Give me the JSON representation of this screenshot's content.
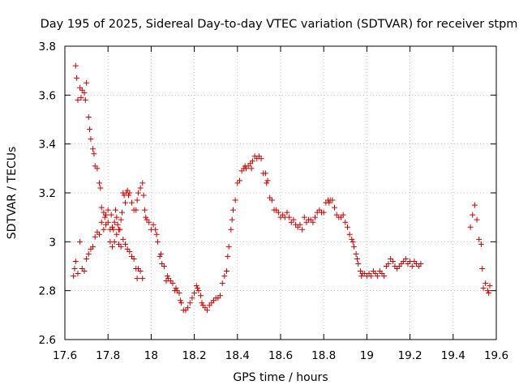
{
  "chart_data": {
    "type": "scatter",
    "title": "Day 195 of 2025, Sidereal Day-to-day VTEC variation (SDTVAR) for receiver stpm",
    "xlabel": "GPS time / hours",
    "ylabel": "SDTVAR / TECUs",
    "xlim": [
      17.6,
      19.6
    ],
    "ylim": [
      2.6,
      3.8
    ],
    "x_ticks": [
      17.6,
      17.8,
      18.0,
      18.2,
      18.4,
      18.6,
      18.8,
      19.0,
      19.2,
      19.4,
      19.6
    ],
    "x_tick_labels": [
      "17.6",
      "17.8",
      "18",
      "18.2",
      "18.4",
      "18.6",
      "18.8",
      "19",
      "19.2",
      "19.4",
      "19.6"
    ],
    "y_ticks": [
      2.6,
      2.8,
      3.0,
      3.2,
      3.4,
      3.6,
      3.8
    ],
    "y_tick_labels": [
      "2.6",
      "2.8",
      "3",
      "3.2",
      "3.4",
      "3.6",
      "3.8"
    ],
    "grid": true,
    "marker": "plus",
    "marker_color": "#cc0000",
    "series": [
      {
        "name": "SDTVAR",
        "points": [
          [
            17.65,
            3.72
          ],
          [
            17.655,
            3.67
          ],
          [
            17.66,
            3.58
          ],
          [
            17.67,
            3.63
          ],
          [
            17.675,
            3.59
          ],
          [
            17.68,
            3.62
          ],
          [
            17.69,
            3.61
          ],
          [
            17.695,
            3.58
          ],
          [
            17.7,
            3.65
          ],
          [
            17.71,
            3.51
          ],
          [
            17.715,
            3.46
          ],
          [
            17.72,
            3.42
          ],
          [
            17.73,
            3.38
          ],
          [
            17.735,
            3.36
          ],
          [
            17.74,
            3.31
          ],
          [
            17.75,
            3.3
          ],
          [
            17.76,
            3.24
          ],
          [
            17.765,
            3.22
          ],
          [
            17.77,
            3.14
          ],
          [
            17.78,
            3.12
          ],
          [
            17.785,
            3.1
          ],
          [
            17.79,
            3.07
          ],
          [
            17.8,
            3.08
          ],
          [
            17.81,
            3.05
          ],
          [
            17.815,
            3.11
          ],
          [
            17.82,
            3.06
          ],
          [
            17.825,
            3.05
          ],
          [
            17.83,
            3.08
          ],
          [
            17.835,
            3.13
          ],
          [
            17.84,
            3.1
          ],
          [
            17.845,
            3.07
          ],
          [
            17.85,
            3.05
          ],
          [
            17.855,
            3.05
          ],
          [
            17.86,
            3.09
          ],
          [
            17.865,
            3.12
          ],
          [
            17.87,
            3.2
          ],
          [
            17.875,
            3.19
          ],
          [
            17.88,
            3.16
          ],
          [
            17.885,
            3.2
          ],
          [
            17.89,
            3.21
          ],
          [
            17.895,
            3.19
          ],
          [
            17.9,
            3.2
          ],
          [
            17.91,
            3.16
          ],
          [
            17.92,
            3.13
          ],
          [
            17.93,
            3.13
          ],
          [
            17.935,
            3.17
          ],
          [
            17.94,
            3.2
          ],
          [
            17.95,
            3.22
          ],
          [
            17.96,
            3.24
          ],
          [
            17.965,
            3.19
          ],
          [
            17.97,
            3.13
          ],
          [
            17.975,
            3.1
          ],
          [
            17.98,
            3.09
          ],
          [
            17.99,
            3.08
          ],
          [
            18.0,
            3.05
          ],
          [
            18.01,
            3.07
          ],
          [
            18.02,
            3.05
          ],
          [
            18.025,
            3.03
          ],
          [
            18.03,
            3.0
          ],
          [
            18.04,
            2.94
          ],
          [
            18.045,
            2.95
          ],
          [
            18.05,
            2.91
          ],
          [
            18.06,
            2.9
          ],
          [
            18.07,
            2.84
          ],
          [
            18.075,
            2.86
          ],
          [
            18.08,
            2.85
          ],
          [
            18.09,
            2.84
          ],
          [
            18.1,
            2.83
          ],
          [
            18.11,
            2.8
          ],
          [
            18.115,
            2.81
          ],
          [
            18.12,
            2.8
          ],
          [
            18.13,
            2.79
          ],
          [
            18.135,
            2.76
          ],
          [
            18.14,
            2.75
          ],
          [
            18.15,
            2.72
          ],
          [
            18.16,
            2.72
          ],
          [
            18.17,
            2.73
          ],
          [
            18.18,
            2.75
          ],
          [
            18.19,
            2.77
          ],
          [
            18.2,
            2.79
          ],
          [
            18.21,
            2.82
          ],
          [
            18.215,
            2.81
          ],
          [
            18.22,
            2.8
          ],
          [
            18.23,
            2.78
          ],
          [
            18.235,
            2.75
          ],
          [
            18.24,
            2.74
          ],
          [
            18.25,
            2.73
          ],
          [
            18.26,
            2.72
          ],
          [
            18.27,
            2.74
          ],
          [
            18.28,
            2.75
          ],
          [
            18.29,
            2.76
          ],
          [
            18.3,
            2.77
          ],
          [
            18.31,
            2.77
          ],
          [
            18.32,
            2.78
          ],
          [
            18.33,
            2.83
          ],
          [
            18.34,
            2.86
          ],
          [
            18.35,
            2.88
          ],
          [
            18.355,
            2.94
          ],
          [
            18.36,
            2.98
          ],
          [
            18.37,
            3.05
          ],
          [
            18.375,
            3.09
          ],
          [
            18.38,
            3.13
          ],
          [
            18.39,
            3.17
          ],
          [
            18.4,
            3.24
          ],
          [
            18.41,
            3.25
          ],
          [
            18.42,
            3.29
          ],
          [
            18.43,
            3.3
          ],
          [
            18.435,
            3.31
          ],
          [
            18.44,
            3.3
          ],
          [
            18.45,
            3.31
          ],
          [
            18.46,
            3.32
          ],
          [
            18.465,
            3.3
          ],
          [
            18.47,
            3.33
          ],
          [
            18.48,
            3.35
          ],
          [
            18.49,
            3.34
          ],
          [
            18.5,
            3.35
          ],
          [
            18.51,
            3.34
          ],
          [
            18.52,
            3.28
          ],
          [
            18.53,
            3.28
          ],
          [
            18.535,
            3.24
          ],
          [
            18.54,
            3.25
          ],
          [
            18.55,
            3.18
          ],
          [
            18.56,
            3.17
          ],
          [
            18.57,
            3.13
          ],
          [
            18.58,
            3.13
          ],
          [
            18.59,
            3.12
          ],
          [
            18.6,
            3.1
          ],
          [
            18.61,
            3.11
          ],
          [
            18.62,
            3.1
          ],
          [
            18.63,
            3.12
          ],
          [
            18.64,
            3.1
          ],
          [
            18.65,
            3.08
          ],
          [
            18.66,
            3.09
          ],
          [
            18.67,
            3.07
          ],
          [
            18.68,
            3.06
          ],
          [
            18.69,
            3.07
          ],
          [
            18.7,
            3.05
          ],
          [
            18.71,
            3.1
          ],
          [
            18.72,
            3.08
          ],
          [
            18.73,
            3.09
          ],
          [
            18.74,
            3.09
          ],
          [
            18.75,
            3.08
          ],
          [
            18.76,
            3.1
          ],
          [
            18.77,
            3.12
          ],
          [
            18.78,
            3.13
          ],
          [
            18.79,
            3.12
          ],
          [
            18.8,
            3.12
          ],
          [
            18.81,
            3.16
          ],
          [
            18.82,
            3.17
          ],
          [
            18.825,
            3.16
          ],
          [
            18.83,
            3.17
          ],
          [
            18.84,
            3.17
          ],
          [
            18.85,
            3.14
          ],
          [
            18.86,
            3.11
          ],
          [
            18.87,
            3.1
          ],
          [
            18.88,
            3.1
          ],
          [
            18.89,
            3.11
          ],
          [
            18.9,
            3.08
          ],
          [
            18.91,
            3.06
          ],
          [
            18.92,
            3.03
          ],
          [
            18.93,
            3.01
          ],
          [
            18.935,
            3.0
          ],
          [
            18.94,
            2.98
          ],
          [
            18.95,
            2.95
          ],
          [
            18.955,
            2.93
          ],
          [
            18.96,
            2.91
          ],
          [
            18.97,
            2.88
          ],
          [
            18.975,
            2.86
          ],
          [
            18.98,
            2.87
          ],
          [
            18.99,
            2.87
          ],
          [
            19.0,
            2.86
          ],
          [
            19.01,
            2.87
          ],
          [
            19.02,
            2.86
          ],
          [
            19.03,
            2.88
          ],
          [
            19.04,
            2.87
          ],
          [
            19.05,
            2.86
          ],
          [
            19.06,
            2.88
          ],
          [
            19.07,
            2.87
          ],
          [
            19.08,
            2.86
          ],
          [
            19.09,
            2.9
          ],
          [
            19.1,
            2.91
          ],
          [
            19.11,
            2.93
          ],
          [
            19.12,
            2.92
          ],
          [
            19.13,
            2.9
          ],
          [
            19.14,
            2.89
          ],
          [
            19.15,
            2.9
          ],
          [
            19.16,
            2.91
          ],
          [
            19.17,
            2.92
          ],
          [
            19.18,
            2.93
          ],
          [
            19.19,
            2.91
          ],
          [
            19.2,
            2.92
          ],
          [
            19.21,
            2.9
          ],
          [
            19.22,
            2.92
          ],
          [
            19.23,
            2.91
          ],
          [
            19.24,
            2.9
          ],
          [
            19.25,
            2.91
          ],
          [
            17.64,
            2.86
          ],
          [
            17.645,
            2.89
          ],
          [
            17.65,
            2.92
          ],
          [
            17.66,
            2.87
          ],
          [
            17.67,
            3.0
          ],
          [
            17.68,
            2.89
          ],
          [
            17.69,
            2.88
          ],
          [
            17.7,
            2.93
          ],
          [
            17.71,
            2.95
          ],
          [
            17.72,
            2.97
          ],
          [
            17.73,
            2.98
          ],
          [
            17.74,
            3.02
          ],
          [
            17.75,
            3.04
          ],
          [
            17.76,
            3.03
          ],
          [
            17.77,
            3.08
          ],
          [
            17.78,
            3.05
          ],
          [
            17.79,
            3.11
          ],
          [
            17.8,
            3.13
          ],
          [
            17.81,
            3.0
          ],
          [
            17.82,
            2.98
          ],
          [
            17.83,
            3.0
          ],
          [
            17.84,
            3.03
          ],
          [
            17.85,
            2.99
          ],
          [
            17.86,
            2.98
          ],
          [
            17.87,
            3.01
          ],
          [
            17.88,
            2.99
          ],
          [
            17.89,
            2.97
          ],
          [
            17.9,
            2.96
          ],
          [
            17.91,
            2.94
          ],
          [
            17.92,
            2.93
          ],
          [
            17.93,
            2.89
          ],
          [
            17.935,
            2.85
          ],
          [
            17.94,
            2.89
          ],
          [
            17.95,
            2.88
          ],
          [
            17.96,
            2.85
          ],
          [
            19.48,
            3.06
          ],
          [
            19.49,
            3.11
          ],
          [
            19.5,
            3.15
          ],
          [
            19.51,
            3.09
          ],
          [
            19.52,
            3.01
          ],
          [
            19.53,
            2.99
          ],
          [
            19.535,
            2.89
          ],
          [
            19.54,
            2.81
          ],
          [
            19.55,
            2.83
          ],
          [
            19.56,
            2.8
          ],
          [
            19.565,
            2.79
          ],
          [
            19.57,
            2.82
          ]
        ]
      }
    ]
  }
}
